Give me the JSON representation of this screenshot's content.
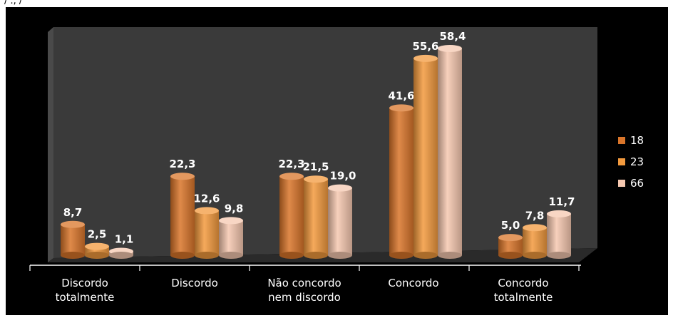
{
  "top_mark": "/ ., /",
  "chart_data": {
    "type": "bar",
    "title": "",
    "xlabel": "",
    "ylabel": "",
    "ylim": [
      0,
      60
    ],
    "grid": false,
    "legend_position": "right",
    "categories": [
      [
        "Discordo",
        "totalmente"
      ],
      [
        "Discordo"
      ],
      [
        "Não concordo",
        "nem discordo"
      ],
      [
        "Concordo"
      ],
      [
        "Concordo",
        "totalmente"
      ]
    ],
    "series": [
      {
        "name": "18",
        "values": [
          8.7,
          22.3,
          22.3,
          41.6,
          5.0
        ],
        "labels": [
          "8,7",
          "22,3",
          "22,3",
          "41,6",
          "5,0"
        ]
      },
      {
        "name": "23",
        "values": [
          2.5,
          12.6,
          21.5,
          55.6,
          7.8
        ],
        "labels": [
          "2,5",
          "12,6",
          "21,5",
          "55,6",
          "7,8"
        ]
      },
      {
        "name": "66",
        "values": [
          1.1,
          9.8,
          19.0,
          58.4,
          11.7
        ],
        "labels": [
          "1,1",
          "9,8",
          "19,0",
          "58,4",
          "11,7"
        ]
      }
    ],
    "colors": {
      "18": "#d9752a",
      "23": "#f39a3e",
      "66": "#f6c8b0",
      "background": "#000000",
      "wall": "#3b3b3b",
      "label": "#ffffff"
    }
  }
}
